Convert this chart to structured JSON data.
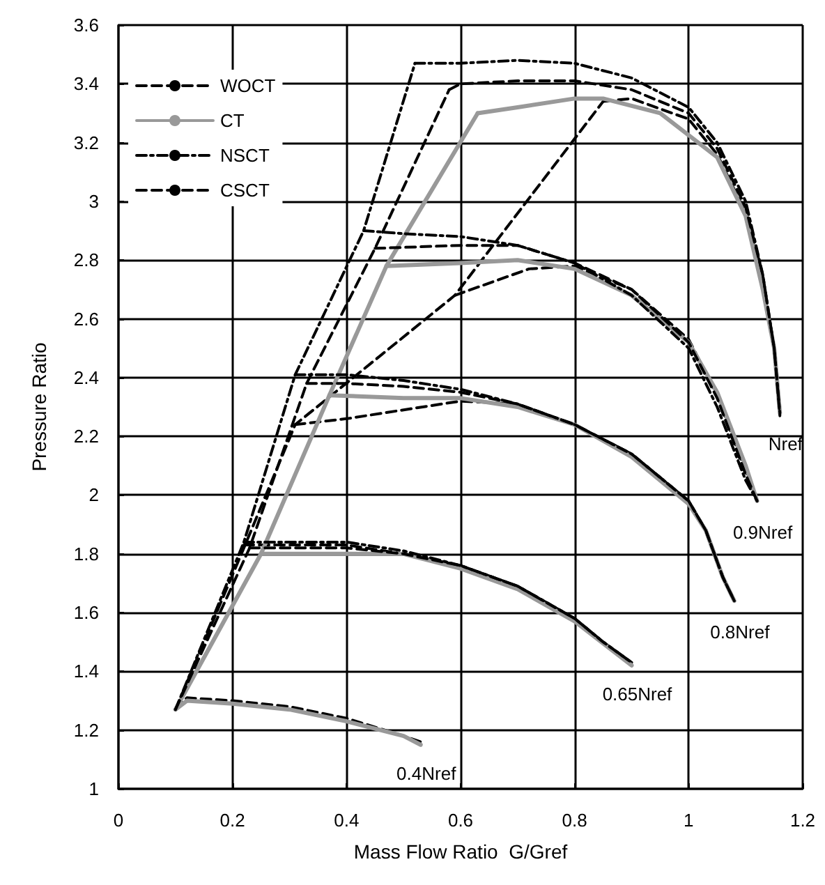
{
  "chart_data": {
    "type": "line",
    "xlabel": "Mass Flow Ratio  G/Gref",
    "ylabel": "Pressure Ratio",
    "xlim": [
      0,
      1.2
    ],
    "xticks": [
      0,
      0.2,
      0.4,
      0.6,
      0.8,
      1,
      1.2
    ],
    "ylim": [
      1,
      3.6
    ],
    "yticks": [
      1,
      1.2,
      1.4,
      1.6,
      1.8,
      2,
      2.2,
      2.4,
      2.6,
      2.8,
      3,
      3.2,
      3.4,
      3.6
    ],
    "grid": true,
    "legend": "top left",
    "marker": "none",
    "annotations": [
      {
        "text": "Nref",
        "x": 1.16,
        "y": 2.28
      },
      {
        "text": "0.9Nref",
        "x": 1.12,
        "y": 1.98
      },
      {
        "text": "0.8Nref",
        "x": 1.08,
        "y": 1.64
      },
      {
        "text": "0.65Nref",
        "x": 0.9,
        "y": 1.43
      },
      {
        "text": "0.4Nref",
        "x": 0.53,
        "y": 1.16
      }
    ],
    "series": [
      {
        "name": "WOCT",
        "color": "#000000",
        "line_style": "dashed",
        "x": [
          0.1,
          0.22,
          0.31,
          0.59,
          0.85
        ],
        "values": [
          1.27,
          1.82,
          2.24,
          2.68,
          3.34
        ]
      },
      {
        "color": "#000000",
        "line_style": "dashed",
        "x": [
          0.85,
          0.9,
          1.0,
          1.05,
          1.1,
          1.13,
          1.15,
          1.16
        ],
        "values": [
          3.34,
          3.35,
          3.28,
          3.16,
          2.96,
          2.72,
          2.5,
          2.28
        ]
      },
      {
        "color": "#000000",
        "line_style": "dashed",
        "x": [
          0.59,
          0.72,
          0.8,
          0.9,
          1.0,
          1.05,
          1.1,
          1.12
        ],
        "values": [
          2.68,
          2.77,
          2.78,
          2.7,
          2.53,
          2.34,
          2.08,
          1.98
        ]
      },
      {
        "color": "#000000",
        "line_style": "dashed",
        "x": [
          0.31,
          0.4,
          0.5,
          0.6,
          0.7,
          0.8,
          0.9,
          1.0,
          1.03,
          1.06,
          1.08
        ],
        "values": [
          2.24,
          2.26,
          2.29,
          2.32,
          2.31,
          2.24,
          2.14,
          1.98,
          1.88,
          1.72,
          1.64
        ]
      },
      {
        "color": "#000000",
        "line_style": "dashed",
        "x": [
          0.22,
          0.4,
          0.5,
          0.6,
          0.7,
          0.8,
          0.85,
          0.9
        ],
        "values": [
          1.83,
          1.83,
          1.8,
          1.76,
          1.69,
          1.58,
          1.5,
          1.43
        ]
      },
      {
        "color": "#000000",
        "line_style": "dashed",
        "x": [
          0.1,
          0.12,
          0.2,
          0.3,
          0.4,
          0.5,
          0.53
        ],
        "values": [
          1.27,
          1.31,
          1.3,
          1.28,
          1.24,
          1.18,
          1.16
        ]
      },
      {
        "name": "CT",
        "color": "#999999",
        "line_style": "solid",
        "x": [
          0.1,
          0.25,
          0.37,
          0.47,
          0.63
        ],
        "values": [
          1.27,
          1.8,
          2.34,
          2.78,
          3.3
        ]
      },
      {
        "color": "#999999",
        "line_style": "solid",
        "x": [
          0.63,
          0.7,
          0.8,
          0.85,
          0.95,
          1.05,
          1.1,
          1.13,
          1.15,
          1.16
        ],
        "values": [
          3.3,
          3.32,
          3.35,
          3.35,
          3.3,
          3.15,
          2.95,
          2.7,
          2.5,
          2.28
        ]
      },
      {
        "color": "#999999",
        "line_style": "solid",
        "x": [
          0.47,
          0.6,
          0.7,
          0.8,
          0.9,
          1.0,
          1.05,
          1.1,
          1.12
        ],
        "values": [
          2.78,
          2.79,
          2.8,
          2.77,
          2.68,
          2.52,
          2.35,
          2.1,
          1.98
        ]
      },
      {
        "color": "#999999",
        "line_style": "solid",
        "x": [
          0.37,
          0.5,
          0.6,
          0.7,
          0.8,
          0.9,
          1.0,
          1.03,
          1.06,
          1.08
        ],
        "values": [
          2.34,
          2.33,
          2.33,
          2.3,
          2.24,
          2.13,
          1.97,
          1.88,
          1.72,
          1.64
        ]
      },
      {
        "color": "#999999",
        "line_style": "solid",
        "x": [
          0.25,
          0.4,
          0.5,
          0.6,
          0.7,
          0.8,
          0.9
        ],
        "values": [
          1.8,
          1.8,
          1.8,
          1.75,
          1.68,
          1.57,
          1.42
        ]
      },
      {
        "color": "#999999",
        "line_style": "solid",
        "x": [
          0.1,
          0.12,
          0.2,
          0.3,
          0.4,
          0.5,
          0.53
        ],
        "values": [
          1.27,
          1.3,
          1.29,
          1.27,
          1.23,
          1.18,
          1.15
        ]
      },
      {
        "name": "NSCT",
        "color": "#000000",
        "line_style": "dotted",
        "x": [
          0.1,
          0.22,
          0.31,
          0.43,
          0.52
        ],
        "values": [
          1.27,
          1.84,
          2.41,
          2.9,
          3.47
        ]
      },
      {
        "color": "#000000",
        "line_style": "dotted",
        "x": [
          0.52,
          0.6,
          0.7,
          0.8,
          0.9,
          1.0,
          1.05,
          1.1,
          1.13,
          1.15,
          1.16
        ],
        "values": [
          3.47,
          3.47,
          3.48,
          3.47,
          3.42,
          3.32,
          3.2,
          3.0,
          2.75,
          2.5,
          2.28
        ]
      },
      {
        "color": "#000000",
        "line_style": "dotted",
        "x": [
          0.43,
          0.5,
          0.6,
          0.7,
          0.8,
          0.9,
          1.0,
          1.05,
          1.1,
          1.12
        ],
        "values": [
          2.9,
          2.89,
          2.88,
          2.85,
          2.79,
          2.68,
          2.5,
          2.3,
          2.05,
          1.98
        ]
      },
      {
        "color": "#000000",
        "line_style": "dotted",
        "x": [
          0.31,
          0.4,
          0.5,
          0.6,
          0.7,
          0.8,
          0.9,
          1.0,
          1.03,
          1.06,
          1.08
        ],
        "values": [
          2.41,
          2.41,
          2.39,
          2.36,
          2.31,
          2.24,
          2.14,
          1.98,
          1.88,
          1.72,
          1.64
        ]
      },
      {
        "color": "#000000",
        "line_style": "dotted",
        "x": [
          0.22,
          0.4,
          0.5,
          0.6,
          0.7,
          0.8,
          0.85,
          0.9
        ],
        "values": [
          1.84,
          1.84,
          1.81,
          1.76,
          1.69,
          1.58,
          1.5,
          1.43
        ]
      },
      {
        "name": "CSCT",
        "color": "#000000",
        "line_style": "dashed",
        "x": [
          0.1,
          0.23,
          0.33,
          0.45,
          0.58
        ],
        "values": [
          1.27,
          1.82,
          2.38,
          2.84,
          3.38
        ]
      },
      {
        "color": "#000000",
        "line_style": "dashed",
        "x": [
          0.58,
          0.6,
          0.7,
          0.8,
          0.9,
          1.0,
          1.05,
          1.1,
          1.13,
          1.15,
          1.16
        ],
        "values": [
          3.38,
          3.4,
          3.41,
          3.41,
          3.38,
          3.3,
          3.18,
          2.98,
          2.75,
          2.5,
          2.27
        ]
      },
      {
        "color": "#000000",
        "line_style": "dashed",
        "x": [
          0.45,
          0.6,
          0.7,
          0.8,
          0.9,
          1.0,
          1.05,
          1.1,
          1.12
        ],
        "values": [
          2.84,
          2.85,
          2.85,
          2.79,
          2.7,
          2.52,
          2.33,
          2.07,
          1.98
        ]
      },
      {
        "color": "#000000",
        "line_style": "dashed",
        "x": [
          0.33,
          0.4,
          0.5,
          0.6,
          0.7,
          0.8,
          0.9,
          1.0,
          1.03,
          1.06,
          1.08
        ],
        "values": [
          2.38,
          2.38,
          2.37,
          2.35,
          2.31,
          2.24,
          2.14,
          1.98,
          1.88,
          1.72,
          1.64
        ]
      },
      {
        "color": "#000000",
        "line_style": "dashed",
        "x": [
          0.23,
          0.4,
          0.5,
          0.6,
          0.7,
          0.8,
          0.85,
          0.9
        ],
        "values": [
          1.82,
          1.82,
          1.8,
          1.76,
          1.69,
          1.58,
          1.5,
          1.43
        ]
      }
    ]
  }
}
